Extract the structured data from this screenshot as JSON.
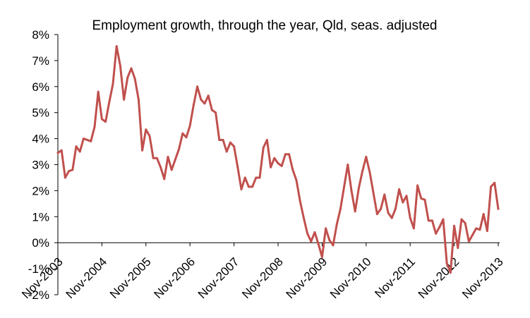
{
  "chart_data": {
    "type": "line",
    "title": "Employment growth, through the year, Qld, seas. adjusted",
    "xlabel": "",
    "ylabel": "",
    "ylim": [
      -2,
      8
    ],
    "y_ticks": [
      -2,
      -1,
      0,
      1,
      2,
      3,
      4,
      5,
      6,
      7,
      8
    ],
    "y_tick_labels": [
      "-2%",
      "-1%",
      "0%",
      "1%",
      "2%",
      "3%",
      "4%",
      "5%",
      "6%",
      "7%",
      "8%"
    ],
    "x_tick_labels": [
      "Nov-2003",
      "Nov-2004",
      "Nov-2005",
      "Nov-2006",
      "Nov-2007",
      "Nov-2008",
      "Nov-2009",
      "Nov-2010",
      "Nov-2011",
      "Nov-2012",
      "Nov-2013"
    ],
    "grid": false,
    "colors": {
      "series": "#c0504d",
      "axis": "#000000",
      "background": "#ffffff"
    },
    "series": [
      {
        "name": "Employment growth",
        "start": "Nov-2003",
        "frequency": "monthly",
        "values": [
          3.45,
          3.55,
          2.5,
          2.75,
          2.8,
          3.7,
          3.5,
          4.0,
          3.95,
          3.9,
          4.45,
          5.8,
          4.75,
          4.65,
          5.4,
          6.1,
          7.55,
          6.8,
          5.5,
          6.35,
          6.7,
          6.3,
          5.5,
          3.55,
          4.35,
          4.1,
          3.25,
          3.25,
          2.9,
          2.45,
          3.3,
          2.8,
          3.2,
          3.6,
          4.2,
          4.05,
          4.5,
          5.3,
          6.0,
          5.5,
          5.35,
          5.65,
          5.1,
          5.0,
          3.95,
          3.95,
          3.5,
          3.85,
          3.7,
          2.9,
          2.05,
          2.5,
          2.15,
          2.15,
          2.5,
          2.5,
          3.65,
          3.95,
          2.9,
          3.25,
          3.05,
          2.95,
          3.4,
          3.4,
          2.8,
          2.4,
          1.6,
          0.95,
          0.35,
          0.05,
          0.4,
          -0.05,
          -0.55,
          0.55,
          0.1,
          -0.1,
          0.7,
          1.3,
          2.15,
          3.0,
          2.0,
          1.2,
          2.1,
          2.75,
          3.3,
          2.7,
          1.9,
          1.1,
          1.3,
          1.85,
          1.15,
          0.95,
          1.3,
          2.05,
          1.55,
          1.8,
          0.95,
          0.55,
          2.2,
          1.7,
          1.65,
          0.85,
          0.85,
          0.35,
          0.6,
          0.9,
          -0.8,
          -1.15,
          0.65,
          -0.2,
          0.9,
          0.75,
          0.05,
          0.3,
          0.55,
          0.5,
          1.1,
          0.45,
          2.15,
          2.3,
          1.3
        ]
      }
    ]
  }
}
